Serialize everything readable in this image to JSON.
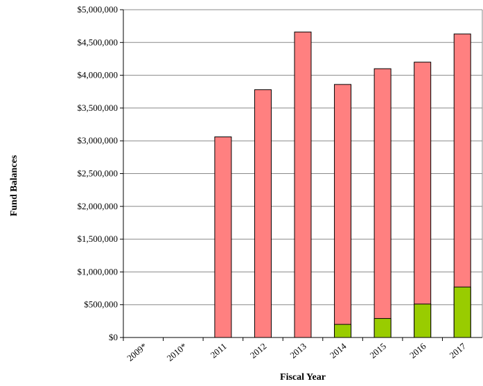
{
  "chart_data": {
    "type": "bar",
    "x_label": "Fiscal Year",
    "y_label": "Fund Balances",
    "categories": [
      "2009*",
      "2010*",
      "2011",
      "2012",
      "2013",
      "2014",
      "2015",
      "2016",
      "2017"
    ],
    "series": [
      {
        "color": "#ff8080",
        "values": [
          null,
          null,
          3060000,
          3780000,
          4660000,
          3860000,
          4100000,
          4200000,
          4630000
        ]
      },
      {
        "color": "#99cc00",
        "values": [
          null,
          null,
          null,
          null,
          null,
          200000,
          290000,
          510000,
          770000
        ]
      }
    ],
    "ylim": [
      0,
      5000000
    ],
    "yticks": [
      {
        "value": 0,
        "label": "$0"
      },
      {
        "value": 500000,
        "label": "$500,000"
      },
      {
        "value": 1000000,
        "label": "$1,000,000"
      },
      {
        "value": 1500000,
        "label": "$1,500,000"
      },
      {
        "value": 2000000,
        "label": "$2,000,000"
      },
      {
        "value": 2500000,
        "label": "$2,500,000"
      },
      {
        "value": 3000000,
        "label": "$3,000,000"
      },
      {
        "value": 3500000,
        "label": "$3,500,000"
      },
      {
        "value": 4000000,
        "label": "$4,000,000"
      },
      {
        "value": 4500000,
        "label": "$4,500,000"
      },
      {
        "value": 5000000,
        "label": "$5,000,000"
      }
    ],
    "grid": true
  }
}
